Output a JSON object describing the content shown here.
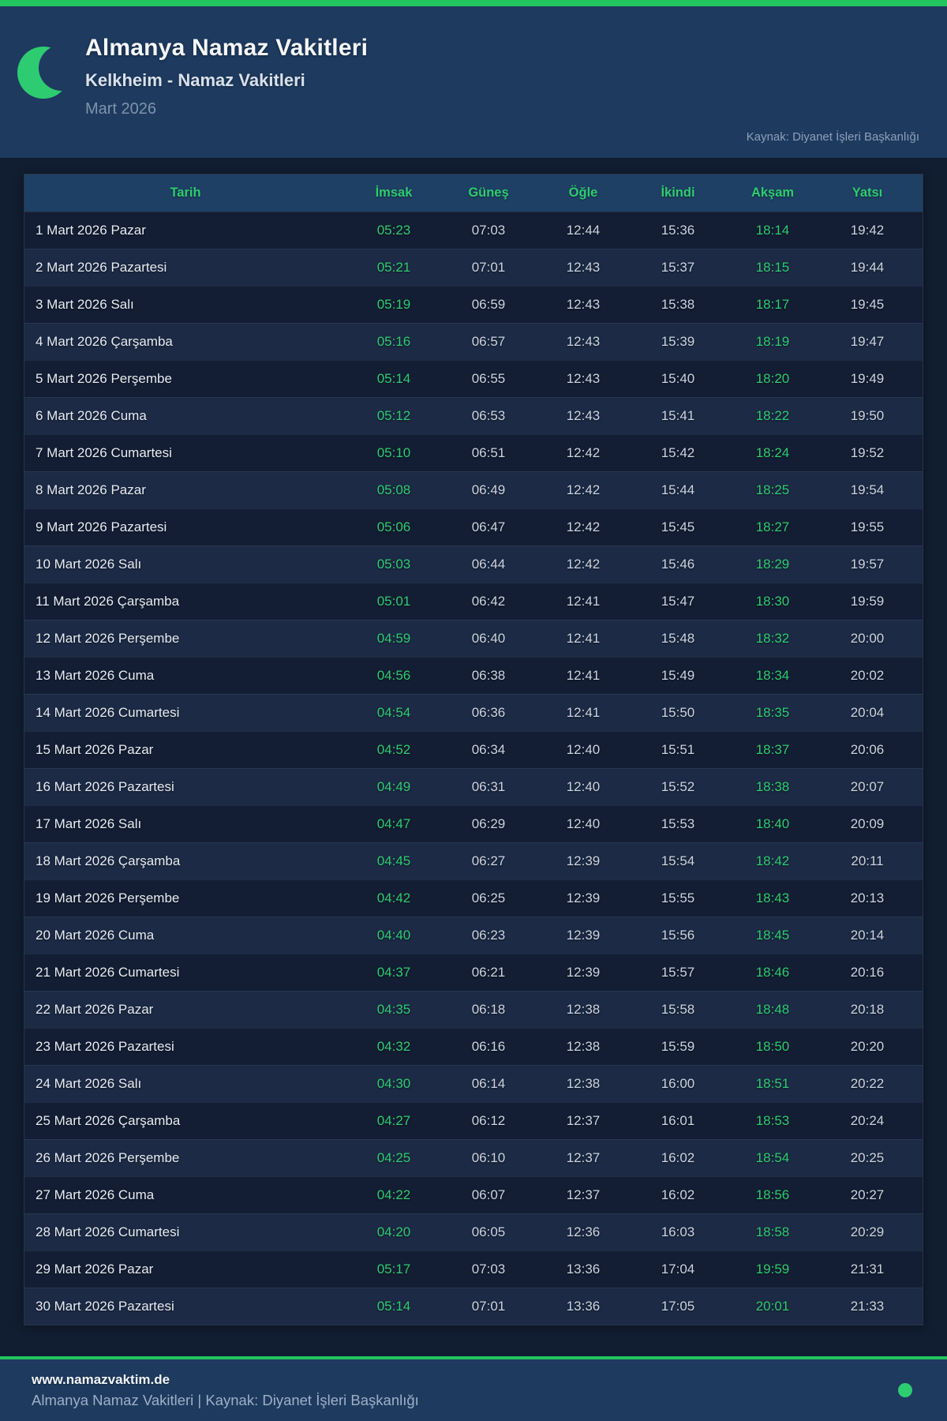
{
  "colors": {
    "accent_green": "#22c55e",
    "text_green": "#2ecc71",
    "header_navy": "#1e3a5f",
    "page_bg": "#111d30",
    "row_dark": "#131e34",
    "row_light": "#1c2a45"
  },
  "header": {
    "title": "Almanya Namaz Vakitleri",
    "subtitle": "Kelkheim - Namaz Vakitleri",
    "month": "Mart 2026",
    "source": "Kaynak: Diyanet İşleri Başkanlığı",
    "icon": "crescent-moon"
  },
  "table": {
    "columns": [
      "Tarih",
      "İmsak",
      "Güneş",
      "Öğle",
      "İkindi",
      "Akşam",
      "Yatsı"
    ],
    "rows": [
      {
        "date": "1 Mart 2026 Pazar",
        "times": [
          "05:23",
          "07:03",
          "12:44",
          "15:36",
          "18:14",
          "19:42"
        ]
      },
      {
        "date": "2 Mart 2026 Pazartesi",
        "times": [
          "05:21",
          "07:01",
          "12:43",
          "15:37",
          "18:15",
          "19:44"
        ]
      },
      {
        "date": "3 Mart 2026 Salı",
        "times": [
          "05:19",
          "06:59",
          "12:43",
          "15:38",
          "18:17",
          "19:45"
        ]
      },
      {
        "date": "4 Mart 2026 Çarşamba",
        "times": [
          "05:16",
          "06:57",
          "12:43",
          "15:39",
          "18:19",
          "19:47"
        ]
      },
      {
        "date": "5 Mart 2026 Perşembe",
        "times": [
          "05:14",
          "06:55",
          "12:43",
          "15:40",
          "18:20",
          "19:49"
        ]
      },
      {
        "date": "6 Mart 2026 Cuma",
        "times": [
          "05:12",
          "06:53",
          "12:43",
          "15:41",
          "18:22",
          "19:50"
        ]
      },
      {
        "date": "7 Mart 2026 Cumartesi",
        "times": [
          "05:10",
          "06:51",
          "12:42",
          "15:42",
          "18:24",
          "19:52"
        ]
      },
      {
        "date": "8 Mart 2026 Pazar",
        "times": [
          "05:08",
          "06:49",
          "12:42",
          "15:44",
          "18:25",
          "19:54"
        ]
      },
      {
        "date": "9 Mart 2026 Pazartesi",
        "times": [
          "05:06",
          "06:47",
          "12:42",
          "15:45",
          "18:27",
          "19:55"
        ]
      },
      {
        "date": "10 Mart 2026 Salı",
        "times": [
          "05:03",
          "06:44",
          "12:42",
          "15:46",
          "18:29",
          "19:57"
        ]
      },
      {
        "date": "11 Mart 2026 Çarşamba",
        "times": [
          "05:01",
          "06:42",
          "12:41",
          "15:47",
          "18:30",
          "19:59"
        ]
      },
      {
        "date": "12 Mart 2026 Perşembe",
        "times": [
          "04:59",
          "06:40",
          "12:41",
          "15:48",
          "18:32",
          "20:00"
        ]
      },
      {
        "date": "13 Mart 2026 Cuma",
        "times": [
          "04:56",
          "06:38",
          "12:41",
          "15:49",
          "18:34",
          "20:02"
        ]
      },
      {
        "date": "14 Mart 2026 Cumartesi",
        "times": [
          "04:54",
          "06:36",
          "12:41",
          "15:50",
          "18:35",
          "20:04"
        ]
      },
      {
        "date": "15 Mart 2026 Pazar",
        "times": [
          "04:52",
          "06:34",
          "12:40",
          "15:51",
          "18:37",
          "20:06"
        ]
      },
      {
        "date": "16 Mart 2026 Pazartesi",
        "times": [
          "04:49",
          "06:31",
          "12:40",
          "15:52",
          "18:38",
          "20:07"
        ]
      },
      {
        "date": "17 Mart 2026 Salı",
        "times": [
          "04:47",
          "06:29",
          "12:40",
          "15:53",
          "18:40",
          "20:09"
        ]
      },
      {
        "date": "18 Mart 2026 Çarşamba",
        "times": [
          "04:45",
          "06:27",
          "12:39",
          "15:54",
          "18:42",
          "20:11"
        ]
      },
      {
        "date": "19 Mart 2026 Perşembe",
        "times": [
          "04:42",
          "06:25",
          "12:39",
          "15:55",
          "18:43",
          "20:13"
        ]
      },
      {
        "date": "20 Mart 2026 Cuma",
        "times": [
          "04:40",
          "06:23",
          "12:39",
          "15:56",
          "18:45",
          "20:14"
        ]
      },
      {
        "date": "21 Mart 2026 Cumartesi",
        "times": [
          "04:37",
          "06:21",
          "12:39",
          "15:57",
          "18:46",
          "20:16"
        ]
      },
      {
        "date": "22 Mart 2026 Pazar",
        "times": [
          "04:35",
          "06:18",
          "12:38",
          "15:58",
          "18:48",
          "20:18"
        ]
      },
      {
        "date": "23 Mart 2026 Pazartesi",
        "times": [
          "04:32",
          "06:16",
          "12:38",
          "15:59",
          "18:50",
          "20:20"
        ]
      },
      {
        "date": "24 Mart 2026 Salı",
        "times": [
          "04:30",
          "06:14",
          "12:38",
          "16:00",
          "18:51",
          "20:22"
        ]
      },
      {
        "date": "25 Mart 2026 Çarşamba",
        "times": [
          "04:27",
          "06:12",
          "12:37",
          "16:01",
          "18:53",
          "20:24"
        ]
      },
      {
        "date": "26 Mart 2026 Perşembe",
        "times": [
          "04:25",
          "06:10",
          "12:37",
          "16:02",
          "18:54",
          "20:25"
        ]
      },
      {
        "date": "27 Mart 2026 Cuma",
        "times": [
          "04:22",
          "06:07",
          "12:37",
          "16:02",
          "18:56",
          "20:27"
        ]
      },
      {
        "date": "28 Mart 2026 Cumartesi",
        "times": [
          "04:20",
          "06:05",
          "12:36",
          "16:03",
          "18:58",
          "20:29"
        ]
      },
      {
        "date": "29 Mart 2026 Pazar",
        "times": [
          "05:17",
          "07:03",
          "13:36",
          "17:04",
          "19:59",
          "21:31"
        ]
      },
      {
        "date": "30 Mart 2026 Pazartesi",
        "times": [
          "05:14",
          "07:01",
          "13:36",
          "17:05",
          "20:01",
          "21:33"
        ]
      }
    ]
  },
  "footer": {
    "site": "www.namazvaktim.de",
    "caption": "Almanya Namaz Vakitleri | Kaynak: Diyanet İşleri Başkanlığı"
  }
}
